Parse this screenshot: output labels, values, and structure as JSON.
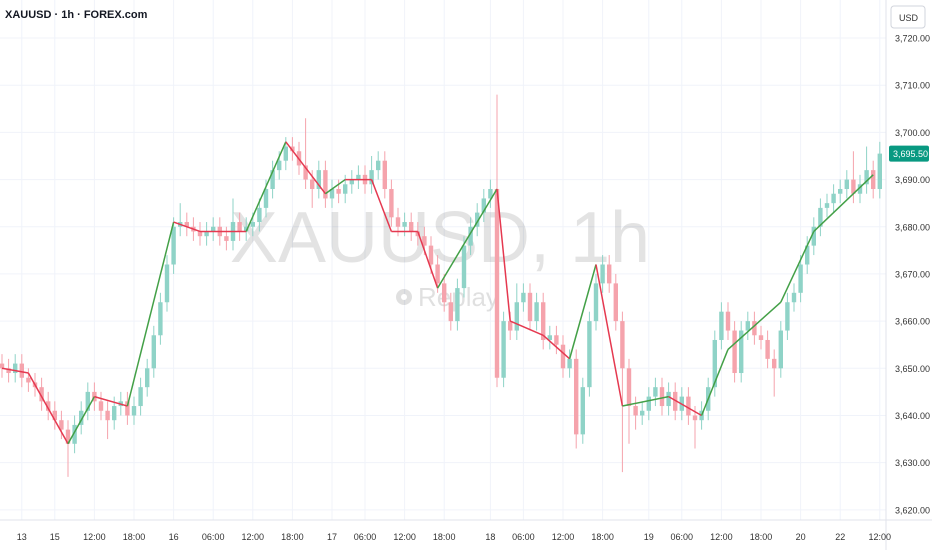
{
  "chart_data": {
    "type": "candlestick",
    "title": "XAUUSD · 1h · FOREX.com",
    "currency_button": "USD",
    "watermark": "XAUUSD, 1h",
    "replay_label": "Replay",
    "up_color": "#8fd3c7",
    "down_color": "#f5a3ac",
    "grid": true,
    "ylim": [
      3617,
      3727
    ],
    "yticks": [
      {
        "value": 3620,
        "label": "3,620.00"
      },
      {
        "value": 3630,
        "label": "3,630.00"
      },
      {
        "value": 3640,
        "label": "3,640.00"
      },
      {
        "value": 3650,
        "label": "3,650.00"
      },
      {
        "value": 3660,
        "label": "3,660.00"
      },
      {
        "value": 3670,
        "label": "3,670.00"
      },
      {
        "value": 3680,
        "label": "3,680.00"
      },
      {
        "value": 3690,
        "label": "3,690.00"
      },
      {
        "value": 3700,
        "label": "3,700.00"
      },
      {
        "value": 3710,
        "label": "3,710.00"
      },
      {
        "value": 3720,
        "label": "3,720.00"
      }
    ],
    "xticks": [
      {
        "value": 3,
        "label": "13"
      },
      {
        "value": 8,
        "label": "15"
      },
      {
        "value": 14,
        "label": "12:00"
      },
      {
        "value": 20,
        "label": "18:00"
      },
      {
        "value": 26,
        "label": "16"
      },
      {
        "value": 32,
        "label": "06:00"
      },
      {
        "value": 38,
        "label": "12:00"
      },
      {
        "value": 44,
        "label": "18:00"
      },
      {
        "value": 50,
        "label": "17"
      },
      {
        "value": 55,
        "label": "06:00"
      },
      {
        "value": 61,
        "label": "12:00"
      },
      {
        "value": 67,
        "label": "18:00"
      },
      {
        "value": 74,
        "label": "18"
      },
      {
        "value": 79,
        "label": "06:00"
      },
      {
        "value": 85,
        "label": "12:00"
      },
      {
        "value": 91,
        "label": "18:00"
      },
      {
        "value": 98,
        "label": "19"
      },
      {
        "value": 103,
        "label": "06:00"
      },
      {
        "value": 109,
        "label": "12:00"
      },
      {
        "value": 115,
        "label": "18:00"
      },
      {
        "value": 121,
        "label": "20"
      },
      {
        "value": 127,
        "label": "22"
      },
      {
        "value": 133,
        "label": "12:00"
      }
    ],
    "open": [
      3651,
      3650,
      3649,
      3651,
      3648,
      3647,
      3646,
      3643,
      3641,
      3639,
      3637,
      3634,
      3638,
      3641,
      3645,
      3643,
      3641,
      3639,
      3642,
      3643,
      3640,
      3642,
      3646,
      3650,
      3657,
      3664,
      3672,
      3680,
      3681,
      3680,
      3679,
      3678,
      3679,
      3680,
      3678,
      3677,
      3681,
      3679,
      3680,
      3681,
      3684,
      3688,
      3692,
      3694,
      3697,
      3696,
      3693,
      3690,
      3688,
      3692,
      3686,
      3688,
      3687,
      3689,
      3690,
      3691,
      3689,
      3692,
      3694,
      3688,
      3682,
      3680,
      3681,
      3679,
      3678,
      3676,
      3672,
      3668,
      3664,
      3660,
      3667,
      3676,
      3680,
      3683,
      3686,
      3688,
      3648,
      3660,
      3658,
      3664,
      3666,
      3660,
      3664,
      3656,
      3657,
      3655,
      3650,
      3652,
      3636,
      3646,
      3660,
      3668,
      3672,
      3668,
      3660,
      3650,
      3642,
      3640,
      3641,
      3644,
      3646,
      3642,
      3645,
      3641,
      3644,
      3640,
      3639,
      3641,
      3646,
      3656,
      3662,
      3658,
      3649,
      3658,
      3660,
      3657,
      3656,
      3652,
      3650,
      3658,
      3664,
      3666,
      3672,
      3676,
      3680,
      3684,
      3685,
      3687,
      3688,
      3690,
      3687,
      3689,
      3692,
      3688
    ],
    "high": [
      3653,
      3652,
      3653,
      3653,
      3650,
      3649,
      3648,
      3645,
      3643,
      3641,
      3639,
      3640,
      3643,
      3647,
      3647,
      3645,
      3643,
      3644,
      3645,
      3645,
      3644,
      3648,
      3652,
      3659,
      3666,
      3674,
      3682,
      3685,
      3683,
      3682,
      3681,
      3681,
      3682,
      3682,
      3680,
      3686,
      3683,
      3682,
      3683,
      3686,
      3690,
      3694,
      3696,
      3699,
      3699,
      3698,
      3703,
      3692,
      3694,
      3694,
      3690,
      3690,
      3691,
      3692,
      3693,
      3693,
      3695,
      3696,
      3696,
      3690,
      3684,
      3683,
      3683,
      3681,
      3680,
      3678,
      3674,
      3670,
      3666,
      3669,
      3678,
      3682,
      3685,
      3688,
      3690,
      3708,
      3662,
      3662,
      3668,
      3668,
      3668,
      3666,
      3666,
      3659,
      3659,
      3657,
      3654,
      3654,
      3648,
      3662,
      3670,
      3674,
      3674,
      3670,
      3662,
      3652,
      3644,
      3643,
      3646,
      3648,
      3648,
      3647,
      3647,
      3646,
      3646,
      3642,
      3643,
      3648,
      3658,
      3664,
      3664,
      3660,
      3660,
      3662,
      3662,
      3659,
      3658,
      3654,
      3660,
      3666,
      3668,
      3674,
      3678,
      3682,
      3686,
      3687,
      3689,
      3690,
      3692,
      3696,
      3691,
      3697,
      3694,
      3698
    ],
    "low": [
      3648,
      3647,
      3647,
      3646,
      3645,
      3644,
      3641,
      3639,
      3637,
      3635,
      3627,
      3632,
      3636,
      3639,
      3641,
      3639,
      3635,
      3637,
      3640,
      3638,
      3638,
      3640,
      3644,
      3648,
      3655,
      3662,
      3670,
      3678,
      3678,
      3677,
      3676,
      3676,
      3677,
      3676,
      3675,
      3675,
      3677,
      3677,
      3678,
      3679,
      3682,
      3686,
      3690,
      3692,
      3694,
      3691,
      3688,
      3684,
      3686,
      3684,
      3684,
      3685,
      3685,
      3687,
      3688,
      3687,
      3687,
      3690,
      3686,
      3680,
      3678,
      3678,
      3677,
      3676,
      3674,
      3670,
      3666,
      3662,
      3658,
      3658,
      3665,
      3674,
      3678,
      3681,
      3684,
      3646,
      3646,
      3656,
      3656,
      3662,
      3658,
      3658,
      3654,
      3654,
      3653,
      3648,
      3648,
      3633,
      3634,
      3644,
      3658,
      3666,
      3666,
      3658,
      3628,
      3634,
      3637,
      3638,
      3639,
      3642,
      3640,
      3640,
      3639,
      3639,
      3638,
      3633,
      3637,
      3639,
      3644,
      3654,
      3656,
      3647,
      3647,
      3656,
      3655,
      3654,
      3650,
      3644,
      3648,
      3656,
      3662,
      3664,
      3670,
      3674,
      3678,
      3682,
      3683,
      3685,
      3686,
      3685,
      3685,
      3687,
      3686,
      3686
    ],
    "close": [
      3650,
      3649,
      3651,
      3648,
      3647,
      3646,
      3643,
      3641,
      3639,
      3637,
      3634,
      3638,
      3641,
      3645,
      3643,
      3641,
      3639,
      3642,
      3643,
      3640,
      3642,
      3646,
      3650,
      3657,
      3664,
      3672,
      3680,
      3681,
      3680,
      3679,
      3678,
      3679,
      3680,
      3678,
      3677,
      3681,
      3679,
      3680,
      3681,
      3684,
      3688,
      3692,
      3694,
      3697,
      3696,
      3693,
      3690,
      3688,
      3692,
      3686,
      3688,
      3687,
      3689,
      3690,
      3691,
      3689,
      3692,
      3694,
      3688,
      3682,
      3680,
      3681,
      3679,
      3678,
      3676,
      3672,
      3668,
      3664,
      3660,
      3667,
      3676,
      3680,
      3683,
      3686,
      3688,
      3648,
      3660,
      3658,
      3664,
      3666,
      3660,
      3664,
      3656,
      3657,
      3655,
      3650,
      3652,
      3636,
      3646,
      3660,
      3668,
      3672,
      3668,
      3660,
      3650,
      3642,
      3640,
      3641,
      3644,
      3646,
      3642,
      3645,
      3641,
      3644,
      3640,
      3639,
      3641,
      3646,
      3656,
      3662,
      3658,
      3649,
      3658,
      3660,
      3657,
      3656,
      3652,
      3650,
      3658,
      3664,
      3666,
      3672,
      3676,
      3680,
      3684,
      3685,
      3687,
      3688,
      3690,
      3687,
      3689,
      3692,
      3688,
      3695.5
    ],
    "zigzag": {
      "up_color": "#43a047",
      "down_color": "#e53950",
      "x": [
        0,
        4,
        10,
        14,
        19,
        26,
        30,
        37,
        43,
        49,
        52,
        56,
        59,
        63,
        66,
        75,
        77,
        82,
        86,
        90,
        94,
        101,
        106,
        110,
        118,
        123,
        132
      ],
      "values": [
        3650,
        3649,
        3634,
        3644,
        3642,
        3681,
        3679,
        3679,
        3698,
        3687,
        3690,
        3690,
        3679,
        3679,
        3667,
        3688,
        3660,
        3657,
        3652,
        3672,
        3642,
        3644,
        3640,
        3654,
        3664,
        3679,
        3691
      ]
    },
    "last_price": {
      "value": 3695.5,
      "label": "3,695.50",
      "color": "#089981"
    }
  }
}
